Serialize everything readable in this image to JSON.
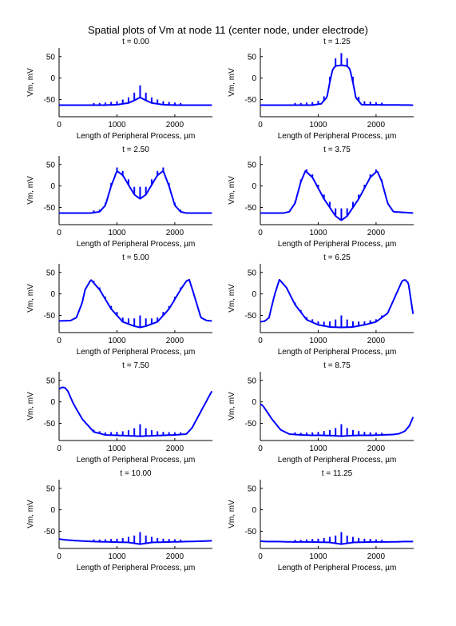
{
  "figure": {
    "suptitle": "Spatial plots of Vm at node 11 (center node, under electrode)"
  },
  "chart_data": {
    "type": "line",
    "layout": "5 rows x 2 columns",
    "line_color": "#0000ff",
    "xlabel": "Length of Peripheral Process, µm",
    "ylabel": "Vm, mV",
    "xlim": [
      0,
      2650
    ],
    "ylim": [
      -90,
      70
    ],
    "xticks": [
      0,
      1000,
      2000
    ],
    "yticks": [
      50,
      0,
      -50
    ],
    "node_spikes": {
      "positions": [
        600,
        700,
        800,
        900,
        1000,
        1100,
        1200,
        1300,
        1400,
        1500,
        1600,
        1700,
        1800,
        1900,
        2000,
        2100
      ],
      "heights": [
        5,
        5,
        6,
        7,
        8,
        10,
        13,
        18,
        28,
        18,
        13,
        10,
        8,
        7,
        6,
        5
      ]
    },
    "panels": [
      {
        "title": "t = 0.00",
        "x": [
          0,
          800,
          1000,
          1200,
          1300,
          1400,
          1500,
          1600,
          1800,
          2000,
          2650
        ],
        "y": [
          -63,
          -63,
          -62,
          -58,
          -52,
          -45,
          -52,
          -58,
          -62,
          -63,
          -63
        ]
      },
      {
        "title": "t = 1.25",
        "x": [
          0,
          900,
          1050,
          1150,
          1200,
          1250,
          1300,
          1400,
          1500,
          1550,
          1600,
          1650,
          1750,
          2650
        ],
        "y": [
          -63,
          -63,
          -60,
          -45,
          -10,
          20,
          28,
          30,
          28,
          20,
          -10,
          -45,
          -62,
          -63
        ]
      },
      {
        "title": "t = 2.50",
        "x": [
          0,
          550,
          700,
          800,
          900,
          1000,
          1100,
          1300,
          1400,
          1500,
          1700,
          1800,
          1900,
          2000,
          2100,
          2200,
          2650
        ],
        "y": [
          -63,
          -63,
          -60,
          -45,
          0,
          35,
          25,
          -20,
          -30,
          -20,
          25,
          35,
          0,
          -45,
          -60,
          -63,
          -63
        ]
      },
      {
        "title": "t = 3.75",
        "x": [
          0,
          400,
          500,
          600,
          700,
          780,
          900,
          1100,
          1300,
          1400,
          1500,
          1700,
          1900,
          2020,
          2100,
          2200,
          2300,
          2650
        ],
        "y": [
          -63,
          -63,
          -60,
          -40,
          10,
          35,
          20,
          -30,
          -70,
          -80,
          -70,
          -30,
          20,
          35,
          10,
          -40,
          -60,
          -63
        ]
      },
      {
        "title": "t = 5.00",
        "x": [
          0,
          200,
          300,
          400,
          450,
          550,
          700,
          900,
          1100,
          1300,
          1400,
          1500,
          1700,
          1900,
          2100,
          2200,
          2250,
          2350,
          2450,
          2550,
          2650
        ],
        "y": [
          -63,
          -62,
          -55,
          -20,
          10,
          33,
          10,
          -35,
          -65,
          -75,
          -78,
          -75,
          -65,
          -35,
          10,
          30,
          33,
          -10,
          -55,
          -62,
          -63
        ]
      },
      {
        "title": "t = 6.25",
        "x": [
          0,
          80,
          150,
          250,
          330,
          450,
          600,
          800,
          1000,
          1200,
          1400,
          1600,
          1800,
          2000,
          2200,
          2350,
          2450,
          2500,
          2560,
          2620,
          2650
        ],
        "y": [
          -65,
          -63,
          -55,
          0,
          33,
          15,
          -25,
          -60,
          -72,
          -77,
          -78,
          -77,
          -72,
          -65,
          -45,
          0,
          30,
          33,
          25,
          -30,
          -55
        ]
      },
      {
        "title": "t = 7.50",
        "x": [
          0,
          50,
          100,
          150,
          250,
          400,
          600,
          800,
          1000,
          1200,
          1400,
          1600,
          1800,
          2000,
          2200,
          2300,
          2400,
          2500,
          2600,
          2650
        ],
        "y": [
          30,
          34,
          33,
          25,
          -5,
          -40,
          -70,
          -77,
          -78,
          -79,
          -80,
          -79,
          -78,
          -77,
          -75,
          -60,
          -35,
          -10,
          15,
          27
        ]
      },
      {
        "title": "t = 8.75",
        "x": [
          0,
          50,
          100,
          200,
          350,
          500,
          700,
          900,
          1100,
          1300,
          1400,
          1500,
          1700,
          1900,
          2100,
          2300,
          2400,
          2500,
          2580,
          2650
        ],
        "y": [
          -5,
          -10,
          -20,
          -40,
          -65,
          -75,
          -77,
          -78,
          -78,
          -79,
          -80,
          -79,
          -78,
          -78,
          -77,
          -76,
          -74,
          -68,
          -55,
          -32
        ]
      },
      {
        "title": "t = 10.00",
        "x": [
          0,
          100,
          300,
          600,
          900,
          1200,
          1400,
          1600,
          1900,
          2200,
          2500,
          2650
        ],
        "y": [
          -68,
          -70,
          -72,
          -74,
          -75,
          -76,
          -80,
          -76,
          -75,
          -74,
          -73,
          -72
        ]
      },
      {
        "title": "t = 11.25",
        "x": [
          0,
          100,
          300,
          600,
          900,
          1200,
          1400,
          1600,
          1900,
          2200,
          2500,
          2650
        ],
        "y": [
          -73,
          -74,
          -74,
          -75,
          -75,
          -76,
          -80,
          -76,
          -75,
          -75,
          -74,
          -74
        ]
      }
    ]
  }
}
